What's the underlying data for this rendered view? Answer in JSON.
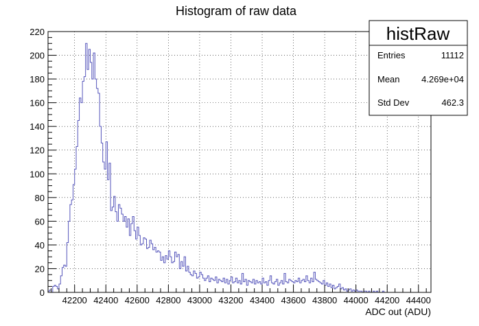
{
  "chart_data": {
    "type": "histogram",
    "title": "Histogram of raw data",
    "xlabel": "ADC out (ADU)",
    "ylabel": "",
    "xlim": [
      42030,
      44480
    ],
    "ylim": [
      0,
      220
    ],
    "x_ticks": [
      42200,
      42400,
      42600,
      42800,
      43000,
      43200,
      43400,
      43600,
      43800,
      44000,
      44200,
      44400
    ],
    "y_ticks": [
      0,
      20,
      40,
      60,
      80,
      100,
      120,
      140,
      160,
      180,
      200,
      220
    ],
    "grid": true,
    "line_color": "#5555bb",
    "bin_width": 10,
    "bin_start": 42030,
    "counts": [
      1,
      2,
      0,
      5,
      6,
      5,
      3,
      7,
      14,
      21,
      23,
      22,
      42,
      60,
      74,
      78,
      91,
      104,
      123,
      145,
      164,
      160,
      178,
      182,
      210,
      188,
      205,
      194,
      180,
      202,
      180,
      172,
      168,
      140,
      126,
      110,
      104,
      127,
      95,
      109,
      69,
      72,
      81,
      68,
      60,
      74,
      71,
      66,
      60,
      64,
      55,
      62,
      48,
      58,
      64,
      52,
      45,
      55,
      48,
      40,
      41,
      46,
      45,
      37,
      38,
      44,
      41,
      36,
      38,
      34,
      35,
      34,
      27,
      30,
      25,
      31,
      28,
      35,
      30,
      25,
      26,
      34,
      30,
      32,
      20,
      26,
      22,
      30,
      18,
      22,
      17,
      15,
      14,
      18,
      16,
      12,
      13,
      17,
      15,
      12,
      10,
      12,
      14,
      9,
      12,
      11,
      10,
      13,
      8,
      11,
      10,
      9,
      12,
      8,
      11,
      7,
      10,
      13,
      8,
      9,
      12,
      8,
      10,
      7,
      16,
      9,
      11,
      6,
      10,
      9,
      8,
      11,
      7,
      10,
      8,
      9,
      7,
      12,
      8,
      9,
      6,
      10,
      14,
      8,
      7,
      9,
      11,
      6,
      8,
      10,
      7,
      16,
      9,
      8,
      11,
      10,
      9,
      8,
      10,
      9,
      12,
      8,
      10,
      11,
      9,
      14,
      10,
      8,
      12,
      9,
      17,
      11,
      10,
      9,
      8,
      7,
      10,
      6,
      8,
      5,
      7,
      4,
      6,
      3,
      4,
      5,
      7,
      3,
      4,
      2,
      3,
      1,
      2,
      3,
      1,
      2,
      1,
      2,
      1,
      1,
      1,
      0,
      1,
      1,
      0,
      1,
      0,
      0,
      1,
      0,
      1,
      0,
      0,
      0,
      1,
      0,
      0,
      0,
      0,
      0,
      0,
      0,
      0,
      0,
      0
    ]
  },
  "stats_box": {
    "title": "histRaw",
    "rows": [
      {
        "label": "Entries",
        "value": "11112"
      },
      {
        "label": "Mean",
        "value": "4.269e+04"
      },
      {
        "label": "Std Dev",
        "value": "462.3"
      }
    ]
  }
}
